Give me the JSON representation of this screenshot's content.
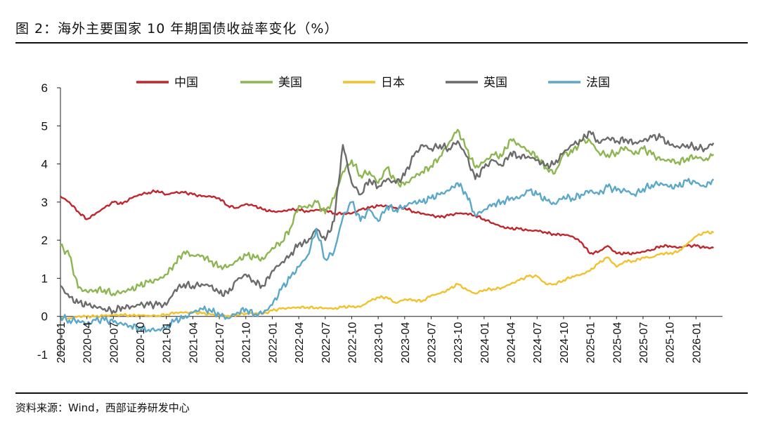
{
  "figure": {
    "title": "图 2：海外主要国家 10 年期国债收益率变化（%）",
    "source": "资料来源：Wind，西部证券研发中心"
  },
  "chart_data": {
    "type": "line",
    "title": "海外主要国家 10 年期国债收益率变化（%）",
    "xlabel": "",
    "ylabel": "",
    "ylim": [
      -1,
      6
    ],
    "yticks": [
      "-1",
      "0",
      "1",
      "2",
      "3",
      "4",
      "5",
      "6"
    ],
    "xlim": [
      "2020-01",
      "2026-04"
    ],
    "x_tick_labels": [
      "2020-01",
      "2020-04",
      "2020-07",
      "2020-10",
      "2021-01",
      "2021-04",
      "2021-07",
      "2021-10",
      "2022-01",
      "2022-04",
      "2022-07",
      "2022-10",
      "2023-01",
      "2023-04",
      "2023-07",
      "2023-10",
      "2024-01",
      "2024-04",
      "2024-07",
      "2024-10",
      "2025-01",
      "2025-04",
      "2025-07",
      "2025-10",
      "2026-01"
    ],
    "legend_position": "top",
    "series": [
      {
        "name": "中国",
        "color": "#c0272d",
        "x": [
          "2020-01",
          "2020-02",
          "2020-03",
          "2020-04",
          "2020-05",
          "2020-06",
          "2020-07",
          "2020-08",
          "2020-09",
          "2020-10",
          "2020-11",
          "2020-12",
          "2021-01",
          "2021-02",
          "2021-03",
          "2021-04",
          "2021-05",
          "2021-06",
          "2021-07",
          "2021-08",
          "2021-09",
          "2021-10",
          "2021-11",
          "2021-12",
          "2022-01",
          "2022-02",
          "2022-03",
          "2022-04",
          "2022-05",
          "2022-06",
          "2022-07",
          "2022-08",
          "2022-09",
          "2022-10",
          "2022-11",
          "2022-12",
          "2023-01",
          "2023-02",
          "2023-03",
          "2023-04",
          "2023-05",
          "2023-06",
          "2023-07",
          "2023-08",
          "2023-09",
          "2023-10",
          "2023-11",
          "2023-12",
          "2024-01",
          "2024-02",
          "2024-03",
          "2024-04",
          "2024-05",
          "2024-06",
          "2024-07",
          "2024-08",
          "2024-09",
          "2024-10",
          "2024-11",
          "2024-12",
          "2025-01",
          "2025-02",
          "2025-03",
          "2025-04",
          "2025-05",
          "2025-06",
          "2025-07",
          "2025-08",
          "2025-09",
          "2025-10",
          "2025-11",
          "2025-12",
          "2026-01",
          "2026-02",
          "2026-03"
        ],
        "values": [
          3.15,
          3.0,
          2.75,
          2.55,
          2.7,
          2.85,
          3.0,
          2.95,
          3.1,
          3.2,
          3.25,
          3.3,
          3.2,
          3.25,
          3.25,
          3.2,
          3.15,
          3.15,
          3.1,
          2.9,
          2.85,
          2.95,
          2.9,
          2.8,
          2.75,
          2.75,
          2.8,
          2.8,
          2.75,
          2.8,
          2.8,
          2.7,
          2.7,
          2.7,
          2.8,
          2.85,
          2.9,
          2.9,
          2.85,
          2.85,
          2.75,
          2.7,
          2.65,
          2.6,
          2.65,
          2.7,
          2.7,
          2.65,
          2.55,
          2.45,
          2.35,
          2.3,
          2.3,
          2.25,
          2.25,
          2.2,
          2.15,
          2.15,
          2.1,
          1.95,
          1.65,
          1.7,
          1.85,
          1.65,
          1.65,
          1.65,
          1.7,
          1.75,
          1.85,
          1.85,
          1.8,
          1.85,
          1.85,
          1.8,
          1.8
        ]
      },
      {
        "name": "美国",
        "color": "#8db652",
        "x": [
          "2020-01",
          "2020-02",
          "2020-03",
          "2020-04",
          "2020-05",
          "2020-06",
          "2020-07",
          "2020-08",
          "2020-09",
          "2020-10",
          "2020-11",
          "2020-12",
          "2021-01",
          "2021-02",
          "2021-03",
          "2021-04",
          "2021-05",
          "2021-06",
          "2021-07",
          "2021-08",
          "2021-09",
          "2021-10",
          "2021-11",
          "2021-12",
          "2022-01",
          "2022-02",
          "2022-03",
          "2022-04",
          "2022-05",
          "2022-06",
          "2022-07",
          "2022-08",
          "2022-09",
          "2022-10",
          "2022-11",
          "2022-12",
          "2023-01",
          "2023-02",
          "2023-03",
          "2023-04",
          "2023-05",
          "2023-06",
          "2023-07",
          "2023-08",
          "2023-09",
          "2023-10",
          "2023-11",
          "2023-12",
          "2024-01",
          "2024-02",
          "2024-03",
          "2024-04",
          "2024-05",
          "2024-06",
          "2024-07",
          "2024-08",
          "2024-09",
          "2024-10",
          "2024-11",
          "2024-12",
          "2025-01",
          "2025-02",
          "2025-03",
          "2025-04",
          "2025-05",
          "2025-06",
          "2025-07",
          "2025-08",
          "2025-09",
          "2025-10",
          "2025-11",
          "2025-12",
          "2026-01",
          "2026-02",
          "2026-03"
        ],
        "values": [
          1.85,
          1.6,
          0.75,
          0.65,
          0.7,
          0.7,
          0.6,
          0.65,
          0.7,
          0.8,
          0.9,
          0.95,
          1.1,
          1.4,
          1.7,
          1.6,
          1.6,
          1.45,
          1.3,
          1.3,
          1.45,
          1.6,
          1.55,
          1.5,
          1.8,
          1.95,
          2.3,
          2.9,
          2.85,
          3.0,
          2.7,
          3.1,
          3.8,
          4.1,
          3.7,
          3.8,
          3.5,
          3.9,
          3.5,
          3.45,
          3.65,
          3.8,
          3.95,
          4.2,
          4.55,
          4.9,
          4.4,
          3.9,
          4.05,
          4.25,
          4.2,
          4.65,
          4.5,
          4.35,
          4.2,
          3.9,
          3.75,
          4.25,
          4.3,
          4.6,
          4.6,
          4.3,
          4.25,
          4.3,
          4.45,
          4.25,
          4.4,
          4.25,
          4.1,
          4.1,
          4.05,
          4.15,
          4.2,
          4.1,
          4.25
        ]
      },
      {
        "name": "日本",
        "color": "#f2c12e",
        "x": [
          "2020-01",
          "2020-02",
          "2020-03",
          "2020-04",
          "2020-05",
          "2020-06",
          "2020-07",
          "2020-08",
          "2020-09",
          "2020-10",
          "2020-11",
          "2020-12",
          "2021-01",
          "2021-02",
          "2021-03",
          "2021-04",
          "2021-05",
          "2021-06",
          "2021-07",
          "2021-08",
          "2021-09",
          "2021-10",
          "2021-11",
          "2021-12",
          "2022-01",
          "2022-02",
          "2022-03",
          "2022-04",
          "2022-05",
          "2022-06",
          "2022-07",
          "2022-08",
          "2022-09",
          "2022-10",
          "2022-11",
          "2022-12",
          "2023-01",
          "2023-02",
          "2023-03",
          "2023-04",
          "2023-05",
          "2023-06",
          "2023-07",
          "2023-08",
          "2023-09",
          "2023-10",
          "2023-11",
          "2023-12",
          "2024-01",
          "2024-02",
          "2024-03",
          "2024-04",
          "2024-05",
          "2024-06",
          "2024-07",
          "2024-08",
          "2024-09",
          "2024-10",
          "2024-11",
          "2024-12",
          "2025-01",
          "2025-02",
          "2025-03",
          "2025-04",
          "2025-05",
          "2025-06",
          "2025-07",
          "2025-08",
          "2025-09",
          "2025-10",
          "2025-11",
          "2025-12",
          "2026-01",
          "2026-02",
          "2026-03"
        ],
        "values": [
          -0.02,
          -0.05,
          0.0,
          0.0,
          0.0,
          0.02,
          0.03,
          0.04,
          0.02,
          0.03,
          0.02,
          0.02,
          0.05,
          0.1,
          0.1,
          0.1,
          0.08,
          0.05,
          0.02,
          0.02,
          0.05,
          0.08,
          0.08,
          0.07,
          0.15,
          0.2,
          0.22,
          0.24,
          0.24,
          0.23,
          0.22,
          0.2,
          0.25,
          0.25,
          0.25,
          0.4,
          0.5,
          0.5,
          0.35,
          0.45,
          0.43,
          0.4,
          0.55,
          0.6,
          0.7,
          0.85,
          0.7,
          0.6,
          0.7,
          0.72,
          0.75,
          0.85,
          0.95,
          1.05,
          1.05,
          0.85,
          0.85,
          0.95,
          1.05,
          1.1,
          1.2,
          1.4,
          1.55,
          1.3,
          1.45,
          1.45,
          1.55,
          1.55,
          1.65,
          1.65,
          1.7,
          1.9,
          2.1,
          2.2,
          2.2
        ]
      },
      {
        "name": "英国",
        "color": "#6b6b6b",
        "x": [
          "2020-01",
          "2020-02",
          "2020-03",
          "2020-04",
          "2020-05",
          "2020-06",
          "2020-07",
          "2020-08",
          "2020-09",
          "2020-10",
          "2020-11",
          "2020-12",
          "2021-01",
          "2021-02",
          "2021-03",
          "2021-04",
          "2021-05",
          "2021-06",
          "2021-07",
          "2021-08",
          "2021-09",
          "2021-10",
          "2021-11",
          "2021-12",
          "2022-01",
          "2022-02",
          "2022-03",
          "2022-04",
          "2022-05",
          "2022-06",
          "2022-07",
          "2022-08",
          "2022-09",
          "2022-10",
          "2022-11",
          "2022-12",
          "2023-01",
          "2023-02",
          "2023-03",
          "2023-04",
          "2023-05",
          "2023-06",
          "2023-07",
          "2023-08",
          "2023-09",
          "2023-10",
          "2023-11",
          "2023-12",
          "2024-01",
          "2024-02",
          "2024-03",
          "2024-04",
          "2024-05",
          "2024-06",
          "2024-07",
          "2024-08",
          "2024-09",
          "2024-10",
          "2024-11",
          "2024-12",
          "2025-01",
          "2025-02",
          "2025-03",
          "2025-04",
          "2025-05",
          "2025-06",
          "2025-07",
          "2025-08",
          "2025-09",
          "2025-10",
          "2025-11",
          "2025-12",
          "2026-01",
          "2026-02",
          "2026-03"
        ],
        "values": [
          0.8,
          0.5,
          0.35,
          0.3,
          0.25,
          0.2,
          0.15,
          0.25,
          0.25,
          0.3,
          0.3,
          0.3,
          0.3,
          0.7,
          0.85,
          0.8,
          0.85,
          0.8,
          0.6,
          0.6,
          0.95,
          1.1,
          0.9,
          0.8,
          1.2,
          1.4,
          1.6,
          1.9,
          1.95,
          2.3,
          2.0,
          2.5,
          4.5,
          3.5,
          3.2,
          3.6,
          3.4,
          3.6,
          3.5,
          3.7,
          4.2,
          4.5,
          4.4,
          4.5,
          4.4,
          4.6,
          4.2,
          3.6,
          3.9,
          4.1,
          3.95,
          4.3,
          4.2,
          4.2,
          4.1,
          3.95,
          4.0,
          4.3,
          4.5,
          4.6,
          4.85,
          4.55,
          4.7,
          4.6,
          4.65,
          4.55,
          4.6,
          4.7,
          4.7,
          4.5,
          4.45,
          4.5,
          4.45,
          4.4,
          4.55
        ]
      },
      {
        "name": "法国",
        "color": "#5ba8c9",
        "x": [
          "2020-01",
          "2020-02",
          "2020-03",
          "2020-04",
          "2020-05",
          "2020-06",
          "2020-07",
          "2020-08",
          "2020-09",
          "2020-10",
          "2020-11",
          "2020-12",
          "2021-01",
          "2021-02",
          "2021-03",
          "2021-04",
          "2021-05",
          "2021-06",
          "2021-07",
          "2021-08",
          "2021-09",
          "2021-10",
          "2021-11",
          "2021-12",
          "2022-01",
          "2022-02",
          "2022-03",
          "2022-04",
          "2022-05",
          "2022-06",
          "2022-07",
          "2022-08",
          "2022-09",
          "2022-10",
          "2022-11",
          "2022-12",
          "2023-01",
          "2023-02",
          "2023-03",
          "2023-04",
          "2023-05",
          "2023-06",
          "2023-07",
          "2023-08",
          "2023-09",
          "2023-10",
          "2023-11",
          "2023-12",
          "2024-01",
          "2024-02",
          "2024-03",
          "2024-04",
          "2024-05",
          "2024-06",
          "2024-07",
          "2024-08",
          "2024-09",
          "2024-10",
          "2024-11",
          "2024-12",
          "2025-01",
          "2025-02",
          "2025-03",
          "2025-04",
          "2025-05",
          "2025-06",
          "2025-07",
          "2025-08",
          "2025-09",
          "2025-10",
          "2025-11",
          "2025-12",
          "2026-01",
          "2026-02",
          "2026-03"
        ],
        "values": [
          0.0,
          -0.1,
          -0.1,
          -0.2,
          -0.1,
          -0.1,
          -0.15,
          -0.2,
          -0.25,
          -0.3,
          -0.35,
          -0.35,
          -0.3,
          -0.1,
          -0.05,
          0.1,
          0.2,
          0.15,
          0.05,
          -0.05,
          0.1,
          0.2,
          0.05,
          0.1,
          0.3,
          0.7,
          1.0,
          1.3,
          1.6,
          2.3,
          1.5,
          1.7,
          2.6,
          3.0,
          2.5,
          2.8,
          2.5,
          2.9,
          2.8,
          2.9,
          3.0,
          3.0,
          3.1,
          3.2,
          3.3,
          3.5,
          3.2,
          2.65,
          2.8,
          2.95,
          3.0,
          3.1,
          3.1,
          3.3,
          3.2,
          3.05,
          2.95,
          3.15,
          3.1,
          3.2,
          3.3,
          3.2,
          3.4,
          3.3,
          3.3,
          3.2,
          3.35,
          3.45,
          3.5,
          3.4,
          3.4,
          3.55,
          3.5,
          3.4,
          3.6
        ]
      }
    ]
  }
}
